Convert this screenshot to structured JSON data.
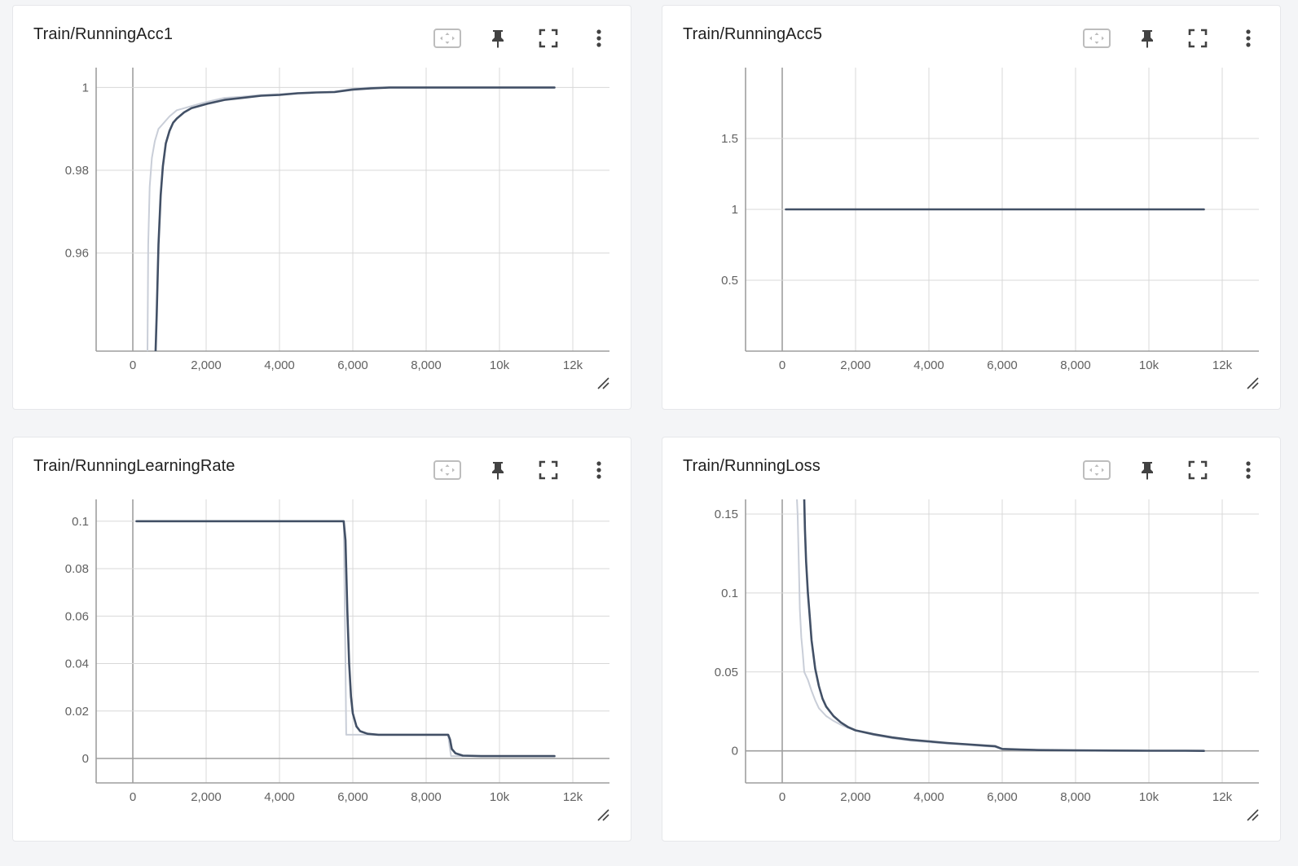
{
  "toolbar_icons": [
    "fit-domain-icon",
    "pin-icon",
    "fullscreen-icon",
    "more-vert-icon"
  ],
  "colors": {
    "smoothed": "#425066",
    "raw": "#c9ced8",
    "grid": "#d8d8d8",
    "axis": "#9e9e9e",
    "tick_text": "#616161"
  },
  "chart_data": [
    {
      "type": "line",
      "title": "Train/RunningAcc1",
      "x_ticks": [
        0,
        2000,
        4000,
        6000,
        8000,
        10000,
        12000
      ],
      "x_tick_labels": [
        "0",
        "2,000",
        "4,000",
        "6,000",
        "8,000",
        "10k",
        "12k"
      ],
      "y_ticks": [
        0.96,
        0.98,
        1
      ],
      "y_tick_labels": [
        "0.96",
        "0.98",
        "1"
      ],
      "xlim": [
        -1000,
        13000
      ],
      "ylim": [
        0.9363,
        1.0048
      ],
      "grid": true,
      "series": [
        {
          "role": "raw",
          "x": [
            400,
            420,
            460,
            520,
            600,
            700,
            800,
            900,
            1000,
            1200,
            1400,
            1600,
            2000,
            2500,
            3000,
            3500,
            4000,
            4500,
            5000,
            5500,
            6000,
            6500,
            7000,
            8000,
            9000,
            10000,
            11000,
            11500
          ],
          "y": [
            0.936,
            0.962,
            0.976,
            0.983,
            0.987,
            0.99,
            0.991,
            0.992,
            0.993,
            0.9945,
            0.995,
            0.9955,
            0.9965,
            0.9975,
            0.9978,
            0.9982,
            0.9984,
            0.9987,
            0.9988,
            0.999,
            0.9997,
            1.0,
            1.0,
            1.0,
            1.0,
            1.0,
            1.0,
            1.0
          ]
        },
        {
          "role": "smoothed",
          "x": [
            620,
            650,
            700,
            760,
            820,
            900,
            1000,
            1100,
            1200,
            1400,
            1600,
            1800,
            2000,
            2500,
            3000,
            3500,
            4000,
            4500,
            5000,
            5500,
            6000,
            6500,
            7000,
            8000,
            9000,
            10000,
            11000,
            11500
          ],
          "y": [
            0.936,
            0.945,
            0.962,
            0.974,
            0.981,
            0.9865,
            0.9895,
            0.9915,
            0.9925,
            0.994,
            0.995,
            0.9955,
            0.996,
            0.997,
            0.9975,
            0.998,
            0.9982,
            0.9986,
            0.9988,
            0.9989,
            0.9995,
            0.9998,
            1.0,
            1.0,
            1.0,
            1.0,
            1.0,
            1.0
          ]
        }
      ]
    },
    {
      "type": "line",
      "title": "Train/RunningAcc5",
      "x_ticks": [
        0,
        2000,
        4000,
        6000,
        8000,
        10000,
        12000
      ],
      "x_tick_labels": [
        "0",
        "2,000",
        "4,000",
        "6,000",
        "8,000",
        "10k",
        "12k"
      ],
      "y_ticks": [
        0.5,
        1,
        1.5
      ],
      "y_tick_labels": [
        "0.5",
        "1",
        "1.5"
      ],
      "xlim": [
        -1000,
        13000
      ],
      "ylim": [
        0,
        2
      ],
      "grid": true,
      "series": [
        {
          "role": "smoothed",
          "x": [
            100,
            11500
          ],
          "y": [
            1,
            1
          ]
        }
      ]
    },
    {
      "type": "line",
      "title": "Train/RunningLearningRate",
      "x_ticks": [
        0,
        2000,
        4000,
        6000,
        8000,
        10000,
        12000
      ],
      "x_tick_labels": [
        "0",
        "2,000",
        "4,000",
        "6,000",
        "8,000",
        "10k",
        "12k"
      ],
      "y_ticks": [
        0,
        0.02,
        0.04,
        0.06,
        0.08,
        0.1
      ],
      "y_tick_labels": [
        "0",
        "0.02",
        "0.04",
        "0.06",
        "0.08",
        "0.1"
      ],
      "xlim": [
        -1000,
        13000
      ],
      "ylim": [
        -0.0103,
        0.1092
      ],
      "grid": true,
      "series": [
        {
          "role": "raw",
          "x": [
            100,
            5750,
            5800,
            5820,
            6000,
            8600,
            8640,
            8680,
            11500
          ],
          "y": [
            0.1,
            0.1,
            0.04,
            0.01,
            0.01,
            0.01,
            0.005,
            0.001,
            0.001
          ]
        },
        {
          "role": "smoothed",
          "x": [
            100,
            5750,
            5800,
            5850,
            5900,
            5950,
            6000,
            6100,
            6200,
            6400,
            6700,
            7000,
            8000,
            8600,
            8650,
            8700,
            8800,
            9000,
            9500,
            11500
          ],
          "y": [
            0.1,
            0.1,
            0.092,
            0.062,
            0.04,
            0.026,
            0.019,
            0.0135,
            0.0115,
            0.0104,
            0.01,
            0.01,
            0.01,
            0.01,
            0.008,
            0.004,
            0.0022,
            0.0012,
            0.001,
            0.001
          ]
        }
      ]
    },
    {
      "type": "line",
      "title": "Train/RunningLoss",
      "x_ticks": [
        0,
        2000,
        4000,
        6000,
        8000,
        10000,
        12000
      ],
      "x_tick_labels": [
        "0",
        "2,000",
        "4,000",
        "6,000",
        "8,000",
        "10k",
        "12k"
      ],
      "y_ticks": [
        0,
        0.05,
        0.1,
        0.15
      ],
      "y_tick_labels": [
        "0",
        "0.05",
        "0.1",
        "0.15"
      ],
      "xlim": [
        -1000,
        13000
      ],
      "ylim": [
        -0.0203,
        0.1593
      ],
      "grid": true,
      "series": [
        {
          "role": "raw",
          "x": [
            400,
            420,
            450,
            480,
            520,
            560,
            600,
            700,
            800,
            900,
            1000,
            1200,
            1400,
            1600,
            1800,
            2000,
            2500,
            3000,
            3500,
            4000,
            4500,
            5000,
            5500,
            5800,
            6000,
            6500,
            7000,
            8000,
            9000,
            10000,
            11000,
            11500
          ],
          "y": [
            0.16,
            0.15,
            0.12,
            0.09,
            0.072,
            0.062,
            0.05,
            0.045,
            0.038,
            0.032,
            0.027,
            0.022,
            0.019,
            0.0165,
            0.0145,
            0.013,
            0.01,
            0.008,
            0.0065,
            0.0055,
            0.0045,
            0.0038,
            0.003,
            0.0025,
            0.001,
            0.0006,
            0.0004,
            0.0002,
            0.0001,
            0.0001,
            0.0,
            0.0
          ]
        },
        {
          "role": "smoothed",
          "x": [
            600,
            620,
            650,
            700,
            750,
            800,
            900,
            1000,
            1100,
            1200,
            1400,
            1600,
            1800,
            2000,
            2500,
            3000,
            3500,
            4000,
            4500,
            5000,
            5500,
            5800,
            6000,
            6500,
            7000,
            8000,
            9000,
            10000,
            11000,
            11500
          ],
          "y": [
            0.16,
            0.14,
            0.12,
            0.1,
            0.085,
            0.07,
            0.052,
            0.041,
            0.033,
            0.028,
            0.022,
            0.018,
            0.015,
            0.013,
            0.0105,
            0.0085,
            0.007,
            0.006,
            0.005,
            0.0042,
            0.0034,
            0.003,
            0.0012,
            0.0008,
            0.0005,
            0.0003,
            0.0002,
            0.0001,
            0.0001,
            0.0
          ]
        }
      ]
    }
  ]
}
